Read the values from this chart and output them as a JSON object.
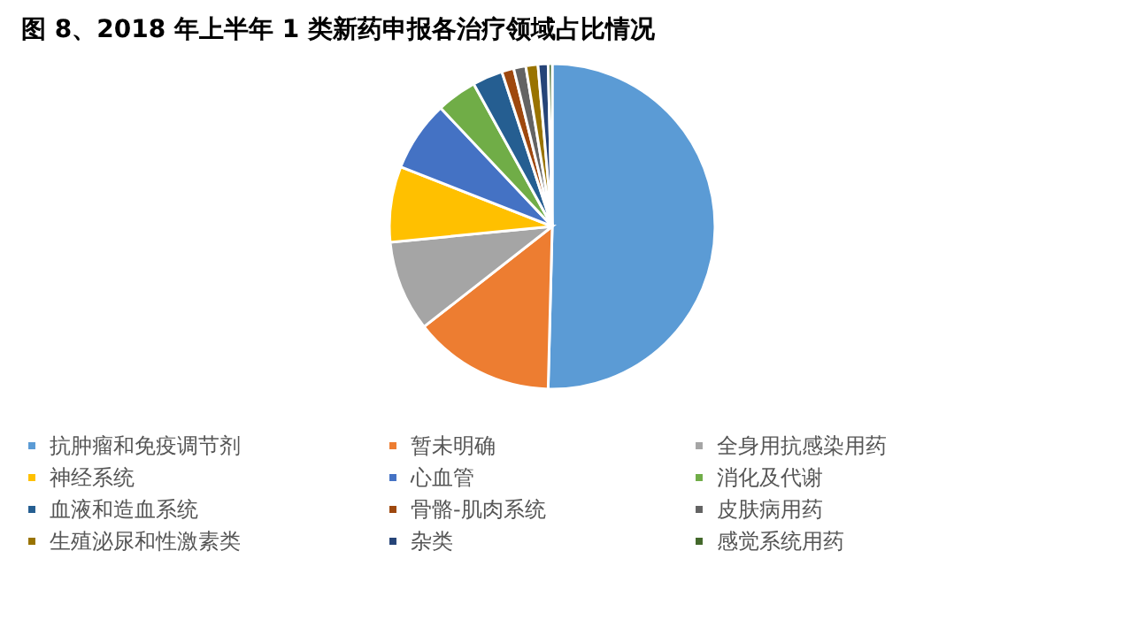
{
  "chart_data": {
    "type": "pie",
    "title": "图 8、2018 年上半年 1 类新药申报各治疗领域占比情况",
    "categories": [
      "抗肿瘤和免疫调节剂",
      "暂未明确",
      "全身用抗感染用药",
      "神经系统",
      "心血管",
      "消化及代谢",
      "血液和造血系统",
      "骨骼-肌肉系统",
      "皮肤病用药",
      "生殖泌尿和性激素类",
      "杂类",
      "感觉系统用药"
    ],
    "values": [
      50.3,
      14,
      9,
      7.5,
      7,
      4,
      3,
      1.2,
      1.2,
      1.2,
      1,
      0.4
    ],
    "colors": [
      "#5b9bd5",
      "#ed7d31",
      "#a5a5a5",
      "#ffc000",
      "#4472c4",
      "#70ad47",
      "#255e91",
      "#9e480e",
      "#636363",
      "#997300",
      "#264478",
      "#43682b"
    ],
    "legend": "bottom"
  }
}
